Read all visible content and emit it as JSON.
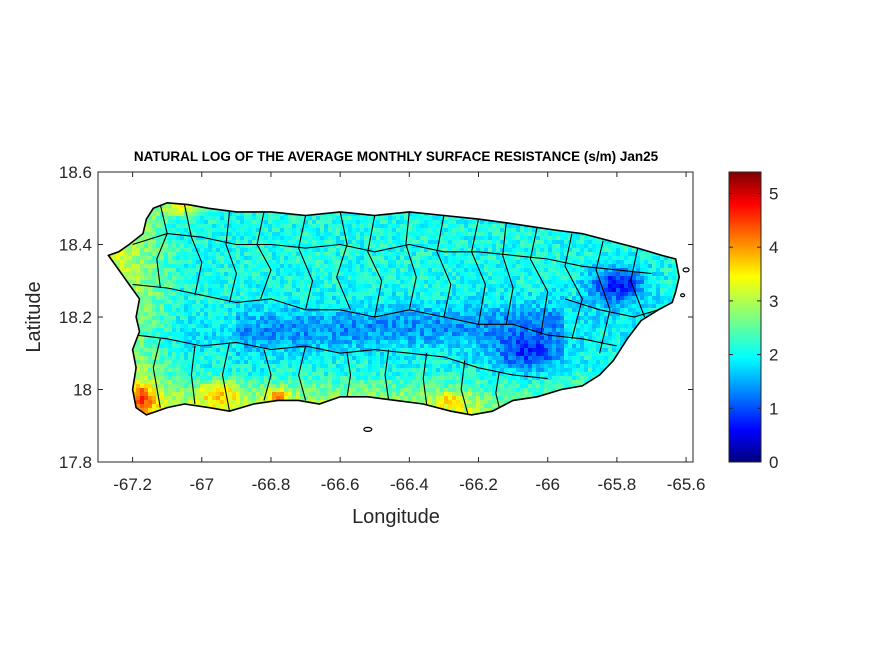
{
  "chart_data": {
    "type": "heatmap",
    "title": "NATURAL LOG OF THE AVERAGE MONTHLY SURFACE RESISTANCE (s/m) Jan25",
    "xlabel": "Longitude",
    "ylabel": "Latitude",
    "xlim": [
      -67.3,
      -65.58
    ],
    "ylim": [
      17.8,
      18.6
    ],
    "xticks": [
      -67.2,
      -67,
      -66.8,
      -66.6,
      -66.4,
      -66.2,
      -66,
      -65.8,
      -65.6
    ],
    "xtick_labels": [
      "-67.2",
      "-67",
      "-66.8",
      "-66.6",
      "-66.4",
      "-66.2",
      "-66",
      "-65.8",
      "-65.6"
    ],
    "yticks": [
      17.8,
      18,
      18.2,
      18.4,
      18.6
    ],
    "ytick_labels": [
      "17.8",
      "18",
      "18.2",
      "18.4",
      "18.6"
    ],
    "colorbar": {
      "colormap": "jet",
      "clim": [
        0,
        5.4
      ],
      "ticks": [
        0,
        1,
        2,
        3,
        4,
        5
      ],
      "tick_labels": [
        "0",
        "1",
        "2",
        "3",
        "4",
        "5"
      ]
    },
    "grid": false,
    "field_description_values": {
      "typical_interior": 2.0,
      "low_east_elevated": 0.5,
      "high_southwest_coast": 4.5
    }
  },
  "colors": {
    "jet_stops": [
      "#00007f",
      "#0000ff",
      "#007fff",
      "#00ffff",
      "#7fff7f",
      "#ffff00",
      "#ff7f00",
      "#ff0000",
      "#7f0000"
    ],
    "boundary": "#000000",
    "axes_edge": "#262626"
  }
}
